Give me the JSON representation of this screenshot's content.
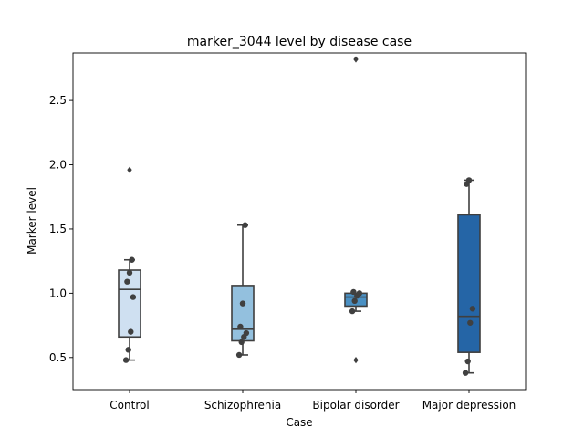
{
  "chart_data": {
    "type": "box",
    "title": "marker_3044 level by disease case",
    "xlabel": "Case",
    "ylabel": "Marker level",
    "categories": [
      "Control",
      "Schizophrenia",
      "Bipolar disorder",
      "Major depression"
    ],
    "ylim": [
      0.25,
      2.87
    ],
    "yticks": [
      0.5,
      1.0,
      1.5,
      2.0,
      2.5
    ],
    "ytick_labels": [
      "0.5",
      "1.0",
      "1.5",
      "2.0",
      "2.5"
    ],
    "grid": false,
    "colors": [
      "#cfe0f1",
      "#93c0de",
      "#4a90c3",
      "#2565a6"
    ],
    "box_edge_color": "#3f3f3f",
    "point_color": "#404040",
    "boxes": [
      {
        "category": "Control",
        "q1": 0.66,
        "median": 1.03,
        "q3": 1.18,
        "whisker_low": 0.48,
        "whisker_high": 1.26,
        "outliers": [
          1.96
        ],
        "points": [
          0.48,
          0.56,
          0.7,
          0.97,
          1.09,
          1.16,
          1.26
        ]
      },
      {
        "category": "Schizophrenia",
        "q1": 0.63,
        "median": 0.72,
        "q3": 1.06,
        "whisker_low": 0.52,
        "whisker_high": 1.53,
        "outliers": [],
        "points": [
          0.52,
          0.62,
          0.66,
          0.69,
          0.74,
          0.92,
          1.53
        ]
      },
      {
        "category": "Bipolar disorder",
        "q1": 0.9,
        "median": 0.97,
        "q3": 1.0,
        "whisker_low": 0.86,
        "whisker_high": 1.0,
        "outliers": [
          0.48,
          2.82
        ],
        "points": [
          0.86,
          0.94,
          0.98,
          1.0,
          1.01
        ]
      },
      {
        "category": "Major depression",
        "q1": 0.54,
        "median": 0.82,
        "q3": 1.61,
        "whisker_low": 0.38,
        "whisker_high": 1.88,
        "outliers": [],
        "points": [
          0.38,
          0.47,
          0.77,
          0.88,
          1.85,
          1.88
        ]
      }
    ]
  }
}
